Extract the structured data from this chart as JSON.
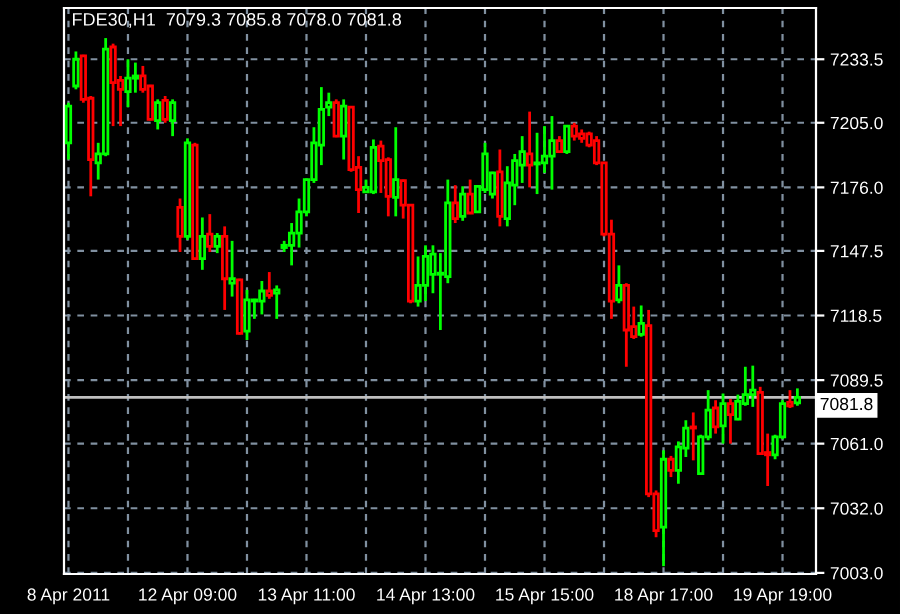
{
  "chart_data": {
    "type": "candlestick",
    "title": "FDE30,H1  7079.3 7085.8 7078.0 7081.8",
    "categories": [
      "8 Apr 2011",
      null,
      null,
      null,
      null,
      null,
      null,
      null,
      null,
      null,
      null,
      null,
      null,
      null,
      null,
      null,
      "12 Apr 09:00",
      null,
      null,
      null,
      null,
      null,
      null,
      null,
      null,
      null,
      null,
      null,
      null,
      null,
      null,
      null,
      "13 Apr 11:00",
      null,
      null,
      null,
      null,
      null,
      null,
      null,
      null,
      null,
      null,
      null,
      null,
      null,
      null,
      null,
      "14 Apr 13:00",
      null,
      null,
      null,
      null,
      null,
      null,
      null,
      null,
      null,
      null,
      null,
      null,
      null,
      null,
      null,
      "15 Apr 15:00",
      null,
      null,
      null,
      null,
      null,
      null,
      null,
      null,
      null,
      null,
      null,
      null,
      null,
      null,
      null,
      "18 Apr 17:00",
      null,
      null,
      null,
      null,
      null,
      null,
      null,
      null,
      null,
      null,
      null,
      null,
      null,
      null,
      null,
      "19 Apr 19:00",
      null,
      null
    ],
    "ohlc": [
      [
        7196,
        7214,
        7188.5,
        7212.5
      ],
      [
        7221.5,
        7237,
        7220,
        7233.5
      ],
      [
        7235,
        7235.5,
        7214,
        7215.5
      ],
      [
        7216,
        7217,
        7172,
        7188.5
      ],
      [
        7187,
        7196,
        7179.5,
        7191
      ],
      [
        7191,
        7243,
        7190,
        7238
      ],
      [
        7239,
        7240.5,
        7203.5,
        7223
      ],
      [
        7224,
        7226,
        7203.5,
        7220
      ],
      [
        7219,
        7233.5,
        7212,
        7225
      ],
      [
        7225,
        7232,
        7218.5,
        7226
      ],
      [
        7226,
        7230.5,
        7218.5,
        7220
      ],
      [
        7221.5,
        7222,
        7206,
        7206.5
      ],
      [
        7206,
        7215.5,
        7202,
        7214
      ],
      [
        7215,
        7217,
        7205,
        7206.5
      ],
      [
        7206,
        7215.5,
        7199,
        7214
      ],
      [
        7167,
        7171,
        7147,
        7154
      ],
      [
        7154,
        7198,
        7152.5,
        7196
      ],
      [
        7195,
        7196,
        7143.5,
        7144
      ],
      [
        7144,
        7162.5,
        7139,
        7154
      ],
      [
        7155,
        7164,
        7147,
        7149.5
      ],
      [
        7149.5,
        7155.5,
        7146.5,
        7154
      ],
      [
        7154,
        7158.5,
        7121,
        7135
      ],
      [
        7133,
        7152,
        7127,
        7135
      ],
      [
        7134.5,
        7135,
        7110,
        7110.5
      ],
      [
        7111.5,
        7130,
        7107.5,
        7125.5
      ],
      [
        7125,
        7126,
        7117,
        7125.5
      ],
      [
        7125,
        7134,
        7119,
        7129.5
      ],
      [
        7129.5,
        7138,
        7126,
        7127.5
      ],
      [
        7128.5,
        7132,
        7117,
        7130
      ],
      [
        7149,
        7152,
        7147,
        7150
      ],
      [
        7150,
        7160,
        7141,
        7155.5
      ],
      [
        7155.5,
        7171,
        7149,
        7165
      ],
      [
        7165,
        7180,
        7163,
        7179.5
      ],
      [
        7179.5,
        7203,
        7178,
        7196
      ],
      [
        7195,
        7221,
        7186,
        7211
      ],
      [
        7212,
        7218.5,
        7208,
        7214
      ],
      [
        7214,
        7215.5,
        7198.5,
        7199
      ],
      [
        7199,
        7215.5,
        7188.5,
        7212.5
      ],
      [
        7212,
        7212.5,
        7183,
        7184
      ],
      [
        7185,
        7190,
        7164.5,
        7175
      ],
      [
        7174,
        7179.5,
        7173.5,
        7176
      ],
      [
        7174,
        7197.5,
        7173,
        7194
      ],
      [
        7194.5,
        7197,
        7173.5,
        7188
      ],
      [
        7188.5,
        7189.5,
        7163,
        7172
      ],
      [
        7171.5,
        7203,
        7163,
        7179.5
      ],
      [
        7179,
        7179.5,
        7162,
        7168
      ],
      [
        7168,
        7168.5,
        7124,
        7125
      ],
      [
        7125,
        7145,
        7122.5,
        7132
      ],
      [
        7132,
        7150,
        7125,
        7145
      ],
      [
        7137,
        7150,
        7128.5,
        7146
      ],
      [
        7137,
        7146.5,
        7112,
        7137.5
      ],
      [
        7136,
        7179.5,
        7133,
        7169
      ],
      [
        7169,
        7177,
        7160,
        7162
      ],
      [
        7163,
        7176.5,
        7161,
        7173
      ],
      [
        7173,
        7179.5,
        7164,
        7164.5
      ],
      [
        7165,
        7177,
        7164.5,
        7176.5
      ],
      [
        7175,
        7196,
        7173.5,
        7191
      ],
      [
        7173,
        7183,
        7171,
        7182.5
      ],
      [
        7183,
        7193,
        7158.5,
        7163
      ],
      [
        7162,
        7185.5,
        7158.5,
        7178
      ],
      [
        7177,
        7191,
        7168,
        7188
      ],
      [
        7186,
        7199,
        7178,
        7192
      ],
      [
        7191,
        7210,
        7176,
        7186
      ],
      [
        7186.5,
        7200.5,
        7173,
        7187
      ],
      [
        7187,
        7203.5,
        7182.5,
        7190
      ],
      [
        7190,
        7208,
        7175,
        7197
      ],
      [
        7197,
        7199,
        7191.5,
        7192
      ],
      [
        7192,
        7204,
        7191,
        7203.5
      ],
      [
        7203.5,
        7205,
        7197,
        7199
      ],
      [
        7200,
        7202,
        7196,
        7198
      ],
      [
        7200,
        7201,
        7194,
        7195
      ],
      [
        7197,
        7199,
        7186,
        7187
      ],
      [
        7187,
        7187.5,
        7154,
        7155
      ],
      [
        7155,
        7161.5,
        7117,
        7125
      ],
      [
        7125.5,
        7141,
        7124,
        7132
      ],
      [
        7132,
        7133,
        7095.5,
        7112
      ],
      [
        7113.5,
        7122.5,
        7108,
        7109
      ],
      [
        7110,
        7123,
        7109,
        7115
      ],
      [
        7114,
        7121,
        7037,
        7038.5
      ],
      [
        7038.5,
        7040,
        7019,
        7022
      ],
      [
        7023.5,
        7058,
        7006,
        7054
      ],
      [
        7054,
        7055.5,
        7046,
        7049
      ],
      [
        7049,
        7062,
        7043,
        7059.5
      ],
      [
        7059,
        7071.5,
        7055,
        7068
      ],
      [
        7068.5,
        7075,
        7053.5,
        7068
      ],
      [
        7047.5,
        7065,
        7047,
        7064
      ],
      [
        7064,
        7085,
        7062.5,
        7076
      ],
      [
        7077,
        7080.5,
        7065.5,
        7068.5
      ],
      [
        7069,
        7083.5,
        7061,
        7079
      ],
      [
        7079,
        7081,
        7061,
        7074
      ],
      [
        7072,
        7083,
        7071.5,
        7080
      ],
      [
        7079,
        7095.5,
        7078,
        7083
      ],
      [
        7083,
        7096,
        7077.5,
        7085
      ],
      [
        7084,
        7086.5,
        7056,
        7056.5
      ],
      [
        7057,
        7065.5,
        7042,
        7056
      ],
      [
        7056,
        7065,
        7054,
        7064
      ],
      [
        7064,
        7080.5,
        7063,
        7079
      ],
      [
        7079.5,
        7085,
        7077,
        7078
      ],
      [
        7079.3,
        7085.8,
        7078.0,
        7081.8
      ]
    ],
    "colors": [
      "#00ff00",
      "#00ff00",
      "#ff0000",
      "#ff0000",
      "#00ff00",
      "#00ff00",
      "#ff0000",
      "#ff0000",
      "#00ff00",
      "#00ff00",
      "#ff0000",
      "#ff0000",
      "#00ff00",
      "#ff0000",
      "#00ff00",
      "#ff0000",
      "#00ff00",
      "#ff0000",
      "#00ff00",
      "#ff0000",
      "#00ff00",
      "#ff0000",
      "#00ff00",
      "#ff0000",
      "#00ff00",
      "#00ff00",
      "#00ff00",
      "#ff0000",
      "#00ff00",
      "#00ff00",
      "#00ff00",
      "#00ff00",
      "#00ff00",
      "#00ff00",
      "#00ff00",
      "#00ff00",
      "#ff0000",
      "#00ff00",
      "#ff0000",
      "#ff0000",
      "#00ff00",
      "#00ff00",
      "#ff0000",
      "#ff0000",
      "#00ff00",
      "#ff0000",
      "#ff0000",
      "#00ff00",
      "#00ff00",
      "#00ff00",
      "#00ff00",
      "#00ff00",
      "#ff0000",
      "#00ff00",
      "#ff0000",
      "#00ff00",
      "#00ff00",
      "#00ff00",
      "#ff0000",
      "#00ff00",
      "#00ff00",
      "#00ff00",
      "#ff0000",
      "#00ff00",
      "#00ff00",
      "#00ff00",
      "#ff0000",
      "#00ff00",
      "#ff0000",
      "#ff0000",
      "#ff0000",
      "#ff0000",
      "#ff0000",
      "#ff0000",
      "#00ff00",
      "#ff0000",
      "#ff0000",
      "#00ff00",
      "#ff0000",
      "#ff0000",
      "#00ff00",
      "#ff0000",
      "#00ff00",
      "#00ff00",
      "#ff0000",
      "#00ff00",
      "#00ff00",
      "#ff0000",
      "#00ff00",
      "#ff0000",
      "#00ff00",
      "#00ff00",
      "#00ff00",
      "#ff0000",
      "#ff0000",
      "#00ff00",
      "#00ff00",
      "#ff0000",
      "#00ff00"
    ],
    "ylim": [
      7002.5,
      7256.5
    ],
    "yticks": [
      {
        "value": 7003,
        "label": "7003.0"
      },
      {
        "value": 7032,
        "label": "7032.0"
      },
      {
        "value": 7061,
        "label": "7061.0"
      },
      7089.5,
      7118.5,
      7147.5,
      {
        "value": 7176,
        "label": "7176.0"
      },
      {
        "value": 7205,
        "label": "7205.0"
      },
      7233.5
    ],
    "ref_lines": [
      {
        "axis": "y",
        "value": 7081.8,
        "label": "7081.8",
        "color": "#c0c0c0"
      }
    ],
    "grid": true
  }
}
